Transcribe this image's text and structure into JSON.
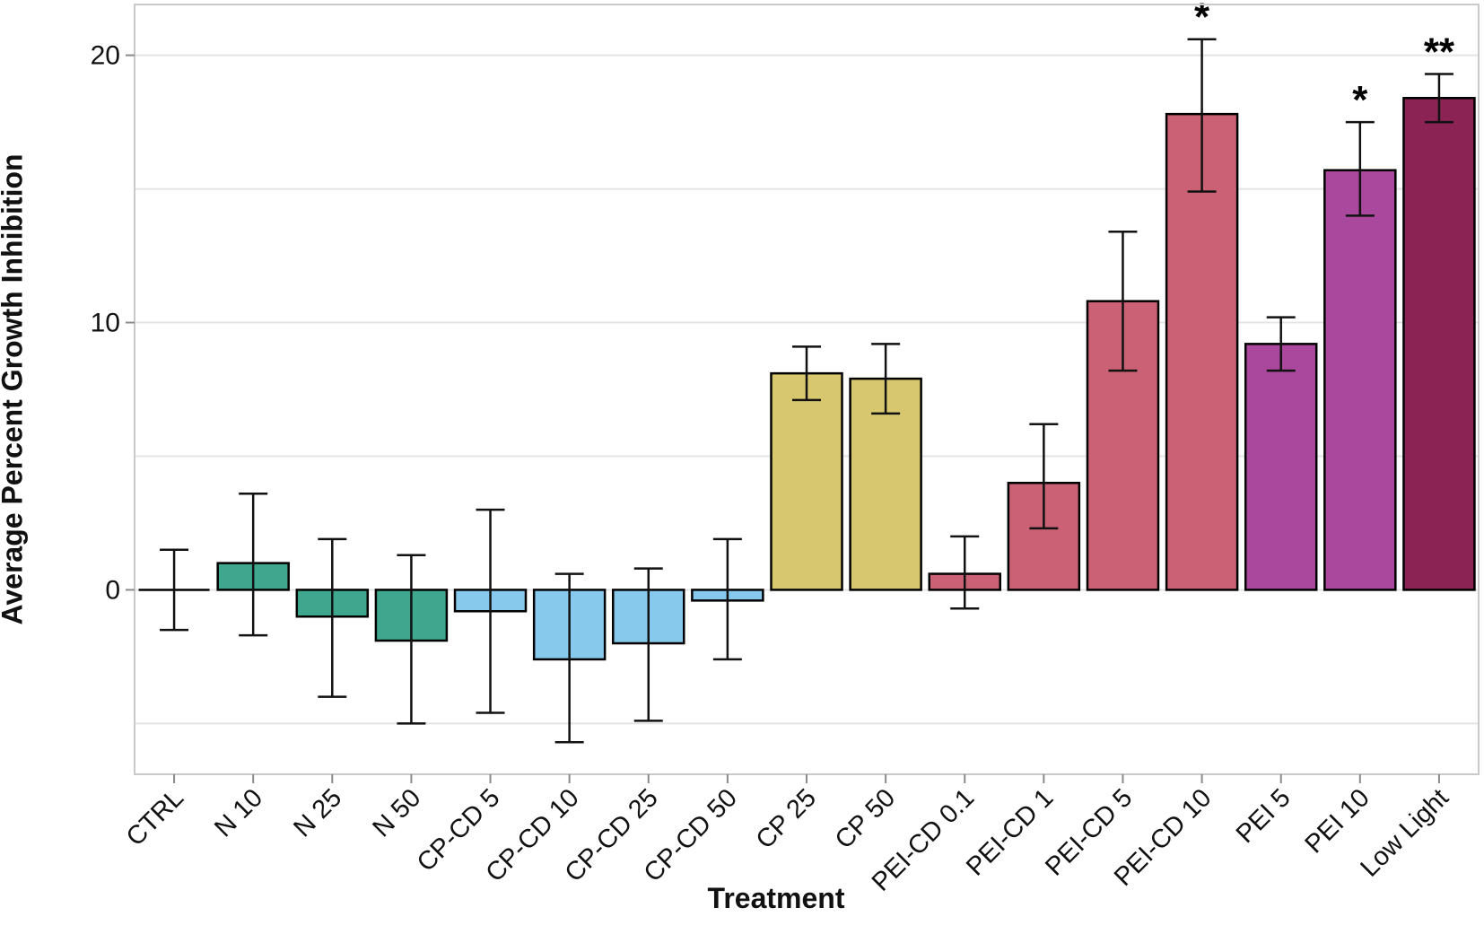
{
  "chart_data": {
    "type": "bar",
    "title": "",
    "xlabel": "Treatment",
    "ylabel": "Average Percent Growth Inhibition",
    "ylim": [
      -6.9,
      21.9
    ],
    "ytick_labels": [
      0,
      10,
      20
    ],
    "gridlines": [
      -5,
      0,
      5,
      10,
      15,
      20
    ],
    "grid_on": true,
    "legend": "none",
    "categories": [
      "CTRL",
      "N 10",
      "N 25",
      "N 50",
      "CP-CD 5",
      "CP-CD 10",
      "CP-CD 25",
      "CP-CD 50",
      "CP 25",
      "CP 50",
      "PEI-CD 0.1",
      "PEI-CD 1",
      "PEI-CD 5",
      "PEI-CD 10",
      "PEI 5",
      "PEI 10",
      "Low Light"
    ],
    "values": [
      0,
      1.0,
      -1.0,
      -1.9,
      -0.8,
      -2.6,
      -2.0,
      -0.4,
      8.1,
      7.9,
      0.6,
      4.0,
      10.8,
      17.8,
      9.2,
      15.7,
      18.4
    ],
    "whisker_high": [
      1.5,
      3.6,
      1.9,
      1.3,
      3.0,
      0.6,
      0.8,
      1.9,
      9.1,
      9.2,
      2.0,
      6.2,
      13.4,
      20.6,
      10.2,
      17.5,
      19.3
    ],
    "whisker_low": [
      -1.5,
      -1.7,
      -4.0,
      -5.0,
      -4.6,
      -5.7,
      -4.9,
      -2.6,
      7.1,
      6.6,
      -0.7,
      2.3,
      8.2,
      14.9,
      8.2,
      14.0,
      17.5
    ],
    "annotations": [
      "",
      "",
      "",
      "",
      "",
      "",
      "",
      "",
      "",
      "",
      "",
      "",
      "",
      "*",
      "",
      "*",
      "**"
    ],
    "bar_colors": [
      "#FFFFFF",
      "#3EA78E",
      "#3EA78E",
      "#3EA78E",
      "#87C9EC",
      "#87C9EC",
      "#87C9EC",
      "#87C9EC",
      "#D7C76E",
      "#D7C76E",
      "#CB6175",
      "#CB6175",
      "#CB6175",
      "#CB6175",
      "#A9489C",
      "#A9489C",
      "#8B2355"
    ],
    "group_palette": {
      "control": "#FFFFFF",
      "N": "#3EA78E",
      "CP-CD": "#87C9EC",
      "CP": "#D7C76E",
      "PEI-CD": "#CB6175",
      "PEI": "#A9489C",
      "low_light": "#8B2355"
    },
    "style_colors": {
      "bar_outline": "#000000",
      "error_bar": "#111111",
      "gridline": "#e4e4e4",
      "panel_border": "#c9c9c9",
      "tick_mark": "#8a8a8a",
      "tick_text": "#111111"
    }
  }
}
